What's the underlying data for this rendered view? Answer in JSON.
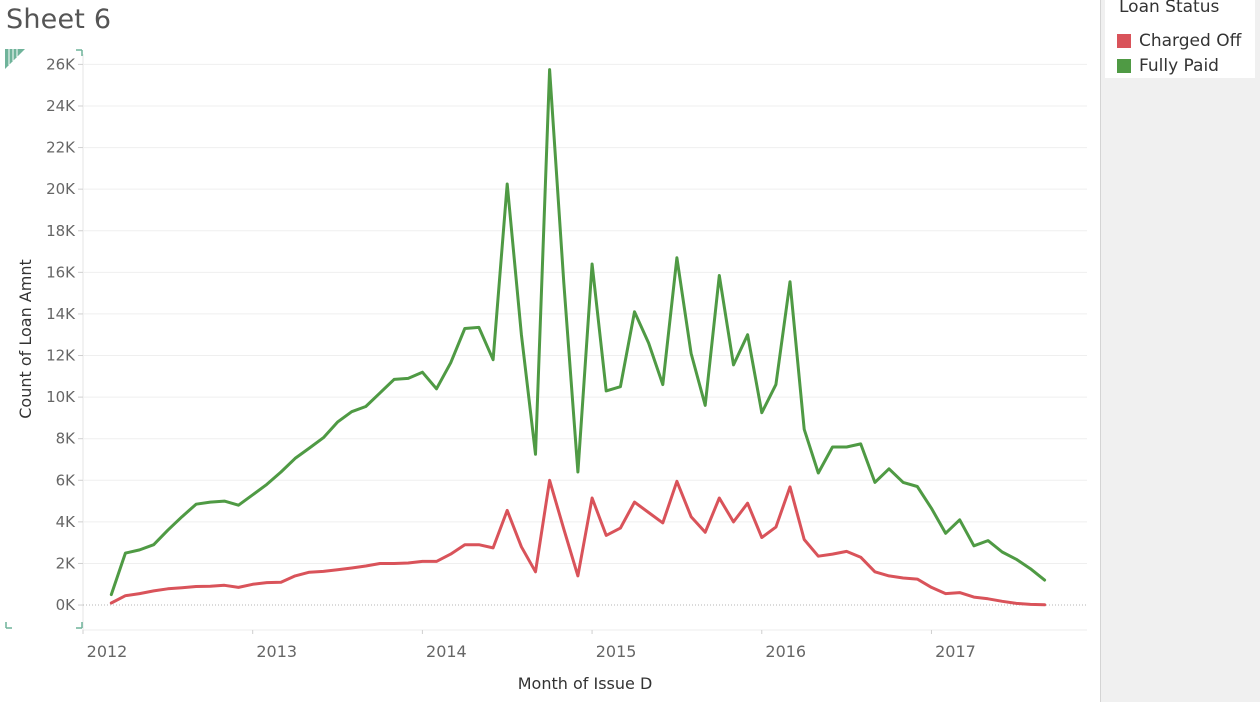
{
  "sheet": {
    "title": "Sheet 6"
  },
  "legend": {
    "title": "Loan Status",
    "items": [
      {
        "label": "Charged Off",
        "color": "#d9535a"
      },
      {
        "label": "Fully Paid",
        "color": "#4f9a44"
      }
    ]
  },
  "chart_data": {
    "type": "line",
    "title": "",
    "xlabel": "Month of Issue D",
    "ylabel": "Count of Loan Amnt",
    "xlim": [
      "2012-01",
      "2017-12"
    ],
    "ylim": [
      -1200,
      26500
    ],
    "y_ticks": [
      0,
      2000,
      4000,
      6000,
      8000,
      10000,
      12000,
      14000,
      16000,
      18000,
      20000,
      22000,
      24000,
      26000
    ],
    "y_tick_labels": [
      "0K",
      "2K",
      "4K",
      "6K",
      "8K",
      "10K",
      "12K",
      "14K",
      "16K",
      "18K",
      "20K",
      "22K",
      "24K",
      "26K"
    ],
    "x_ticks": [
      "2012",
      "2013",
      "2014",
      "2015",
      "2016",
      "2017"
    ],
    "grid": true,
    "legend_position": "top-right",
    "x": [
      "2012-03",
      "2012-04",
      "2012-05",
      "2012-06",
      "2012-07",
      "2012-08",
      "2012-09",
      "2012-10",
      "2012-11",
      "2012-12",
      "2013-01",
      "2013-02",
      "2013-03",
      "2013-04",
      "2013-05",
      "2013-06",
      "2013-07",
      "2013-08",
      "2013-09",
      "2013-10",
      "2013-11",
      "2013-12",
      "2014-01",
      "2014-02",
      "2014-03",
      "2014-04",
      "2014-05",
      "2014-06",
      "2014-07",
      "2014-08",
      "2014-09",
      "2014-10",
      "2014-11",
      "2014-12",
      "2015-01",
      "2015-02",
      "2015-03",
      "2015-04",
      "2015-05",
      "2015-06",
      "2015-07",
      "2015-08",
      "2015-09",
      "2015-10",
      "2015-11",
      "2015-12",
      "2016-01",
      "2016-02",
      "2016-03",
      "2016-04",
      "2016-05",
      "2016-06",
      "2016-07",
      "2016-08",
      "2016-09",
      "2016-10",
      "2016-11",
      "2016-12",
      "2017-01",
      "2017-02",
      "2017-03",
      "2017-04",
      "2017-05",
      "2017-06",
      "2017-07",
      "2017-08",
      "2017-09"
    ],
    "series": [
      {
        "name": "Charged Off",
        "color": "#d9535a",
        "values": [
          100,
          450,
          550,
          680,
          780,
          830,
          890,
          900,
          950,
          850,
          1000,
          1080,
          1100,
          1400,
          1580,
          1620,
          1700,
          1780,
          1880,
          2000,
          2000,
          2020,
          2100,
          2100,
          2450,
          2900,
          2900,
          2750,
          4550,
          2800,
          1600,
          6000,
          3650,
          1400,
          5150,
          3350,
          3700,
          4950,
          4450,
          3950,
          5950,
          4250,
          3500,
          5150,
          4000,
          4900,
          3250,
          3750,
          5680,
          3150,
          2350,
          2450,
          2580,
          2300,
          1600,
          1400,
          1300,
          1250,
          850,
          550,
          600,
          380,
          300,
          180,
          80,
          30,
          10
        ]
      },
      {
        "name": "Fully Paid",
        "color": "#4f9a44",
        "values": [
          500,
          2500,
          2650,
          2900,
          3600,
          4250,
          4850,
          4950,
          5000,
          4800,
          5300,
          5800,
          6400,
          7050,
          7550,
          8050,
          8800,
          9300,
          9550,
          10200,
          10850,
          10900,
          11200,
          10400,
          11650,
          13300,
          13350,
          11800,
          20250,
          13000,
          7250,
          25750,
          15500,
          6400,
          16400,
          10300,
          10500,
          14100,
          12600,
          10600,
          16700,
          12100,
          9600,
          15850,
          11550,
          13000,
          9250,
          10600,
          15550,
          8450,
          6350,
          7600,
          7600,
          7750,
          5900,
          6550,
          5900,
          5700,
          4650,
          3450,
          4100,
          2850,
          3100,
          2550,
          2200,
          1750,
          1200
        ]
      }
    ]
  }
}
